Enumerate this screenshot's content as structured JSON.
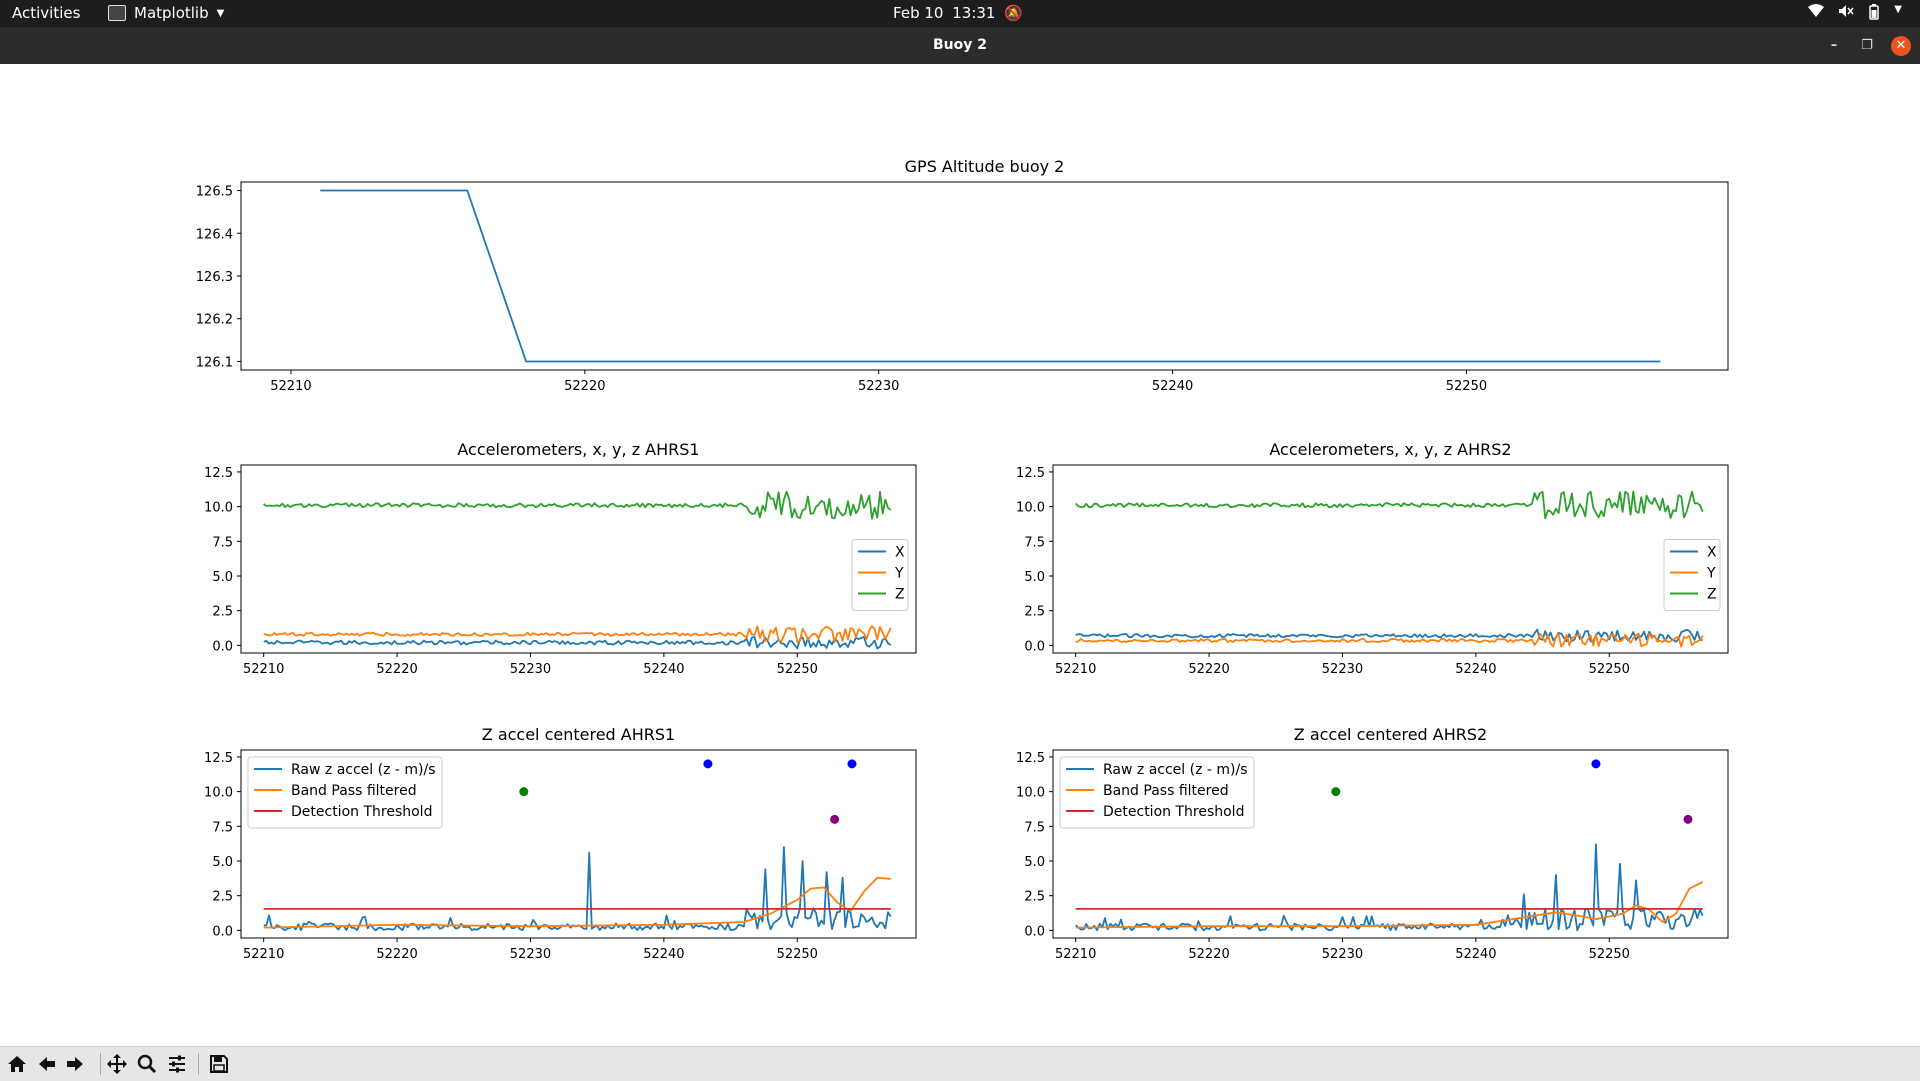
{
  "topbar": {
    "activities": "Activities",
    "app_name": "Matplotlib",
    "clock_date": "Feb 10",
    "clock_time": "13:31"
  },
  "window": {
    "title": "Buoy 2"
  },
  "toolbar": {
    "buttons": [
      "home-icon",
      "back-icon",
      "forward-icon",
      "pan-icon",
      "zoom-icon",
      "configure-subplots-icon",
      "save-icon"
    ]
  },
  "colors": {
    "X": "#1f77b4",
    "Y": "#ff7f0e",
    "Z": "#2ca02c",
    "threshold": "#d62728"
  },
  "chart_data": [
    {
      "type": "line",
      "title": "GPS Altitude buoy 2",
      "xlim": [
        52208.3,
        52258.9
      ],
      "ylim": [
        126.08,
        126.52
      ],
      "xticks": [
        52210,
        52220,
        52230,
        52240,
        52250
      ],
      "yticks": [
        126.1,
        126.2,
        126.3,
        126.4,
        126.5
      ],
      "grid": false,
      "series": [
        {
          "color": "#1f77b4",
          "x": [
            52211,
            52216,
            52218,
            52256.6
          ],
          "y": [
            126.5,
            126.5,
            126.1,
            126.1
          ]
        }
      ]
    },
    {
      "type": "line",
      "title": "Accelerometers, x, y, z AHRS1",
      "xlim": [
        52208.3,
        52258.9
      ],
      "ylim": [
        -0.55,
        13.0
      ],
      "xticks": [
        52210,
        52220,
        52230,
        52240,
        52250
      ],
      "yticks": [
        0.0,
        2.5,
        5.0,
        7.5,
        10.0,
        12.5
      ],
      "legend": "center-right",
      "grid": false,
      "series": [
        {
          "name": "X",
          "color": "#1f77b4",
          "base": 0.2,
          "noise": 0.15,
          "active_noise": 0.45,
          "x_start": 52210,
          "x_end": 52257
        },
        {
          "name": "Y",
          "color": "#ff7f0e",
          "base": 0.8,
          "noise": 0.12,
          "active_noise": 0.6,
          "x_start": 52210,
          "x_end": 52257
        },
        {
          "name": "Z",
          "color": "#2ca02c",
          "base": 10.1,
          "noise": 0.15,
          "active_noise": 1.0,
          "x_start": 52210,
          "x_end": 52257
        }
      ],
      "activity_start": 52246
    },
    {
      "type": "line",
      "title": "Accelerometers, x, y, z AHRS2",
      "xlim": [
        52208.3,
        52258.9
      ],
      "ylim": [
        -0.55,
        13.0
      ],
      "xticks": [
        52210,
        52220,
        52230,
        52240,
        52250
      ],
      "yticks": [
        0.0,
        2.5,
        5.0,
        7.5,
        10.0,
        12.5
      ],
      "legend": "center-right",
      "grid": false,
      "series": [
        {
          "name": "X",
          "color": "#1f77b4",
          "base": 0.7,
          "noise": 0.12,
          "active_noise": 0.45,
          "x_start": 52210,
          "x_end": 52257
        },
        {
          "name": "Y",
          "color": "#ff7f0e",
          "base": 0.35,
          "noise": 0.12,
          "active_noise": 0.5,
          "x_start": 52210,
          "x_end": 52257
        },
        {
          "name": "Z",
          "color": "#2ca02c",
          "base": 10.1,
          "noise": 0.15,
          "active_noise": 1.0,
          "x_start": 52210,
          "x_end": 52257
        }
      ],
      "activity_start": 52244
    },
    {
      "type": "line",
      "title": "Z accel centered AHRS1",
      "xlim": [
        52208.3,
        52258.9
      ],
      "ylim": [
        -0.55,
        13.0
      ],
      "xticks": [
        52210,
        52220,
        52230,
        52240,
        52250
      ],
      "yticks": [
        0.0,
        2.5,
        5.0,
        7.5,
        10.0,
        12.5
      ],
      "legend": "upper-left",
      "grid": false,
      "series": [
        {
          "name": "Raw z accel (z - m)/s",
          "color": "#1f77b4",
          "x_start": 52210,
          "x_end": 52257
        },
        {
          "name": "Band Pass filtered",
          "color": "#ff7f0e",
          "x": [
            52210,
            52220,
            52230,
            52240,
            52246,
            52248,
            52250,
            52251,
            52252,
            52253,
            52254,
            52255,
            52256,
            52257
          ],
          "y": [
            0.2,
            0.4,
            0.3,
            0.4,
            0.6,
            1.2,
            2.2,
            3.0,
            3.1,
            2.0,
            1.4,
            2.8,
            3.8,
            3.7
          ]
        },
        {
          "name": "Detection Threshold",
          "color": "#d62728",
          "x": [
            52210,
            52257
          ],
          "y": [
            1.55,
            1.55
          ]
        }
      ],
      "spikes": [
        [
          52234.4,
          5.6
        ],
        [
          52248.9,
          6.0
        ],
        [
          52247.6,
          4.4
        ],
        [
          52250.3,
          5.0
        ],
        [
          52252.2,
          4.2
        ],
        [
          52253.4,
          3.8
        ]
      ],
      "activity_start": 52246,
      "markers": [
        {
          "x": 52229.5,
          "y": 10.0,
          "color": "green"
        },
        {
          "x": 52243.3,
          "y": 12.0,
          "color": "blue"
        },
        {
          "x": 52254.1,
          "y": 12.0,
          "color": "blue"
        },
        {
          "x": 52252.8,
          "y": 8.0,
          "color": "purple"
        }
      ]
    },
    {
      "type": "line",
      "title": "Z accel centered AHRS2",
      "xlim": [
        52208.3,
        52258.9
      ],
      "ylim": [
        -0.55,
        13.0
      ],
      "xticks": [
        52210,
        52220,
        52230,
        52240,
        52250
      ],
      "yticks": [
        0.0,
        2.5,
        5.0,
        7.5,
        10.0,
        12.5
      ],
      "legend": "upper-left",
      "grid": false,
      "series": [
        {
          "name": "Raw z accel (z - m)/s",
          "color": "#1f77b4",
          "x_start": 52210,
          "x_end": 52257
        },
        {
          "name": "Band Pass filtered",
          "color": "#ff7f0e",
          "x": [
            52210,
            52220,
            52230,
            52240,
            52244,
            52246,
            52248,
            52249,
            52251,
            52252,
            52253,
            52254,
            52255,
            52256,
            52257
          ],
          "y": [
            0.2,
            0.3,
            0.3,
            0.4,
            1.0,
            1.3,
            1.0,
            0.8,
            1.2,
            1.8,
            1.5,
            0.6,
            1.2,
            3.0,
            3.5
          ]
        },
        {
          "name": "Detection Threshold",
          "color": "#d62728",
          "x": [
            52210,
            52257
          ],
          "y": [
            1.55,
            1.55
          ]
        }
      ],
      "spikes": [
        [
          52249.0,
          6.2
        ],
        [
          52246.0,
          4.0
        ],
        [
          52250.8,
          4.8
        ],
        [
          52252.0,
          3.6
        ],
        [
          52243.5,
          2.6
        ]
      ],
      "activity_start": 52243,
      "markers": [
        {
          "x": 52229.5,
          "y": 10.0,
          "color": "green"
        },
        {
          "x": 52249.0,
          "y": 12.0,
          "color": "blue"
        },
        {
          "x": 52255.9,
          "y": 8.0,
          "color": "purple"
        }
      ]
    }
  ]
}
